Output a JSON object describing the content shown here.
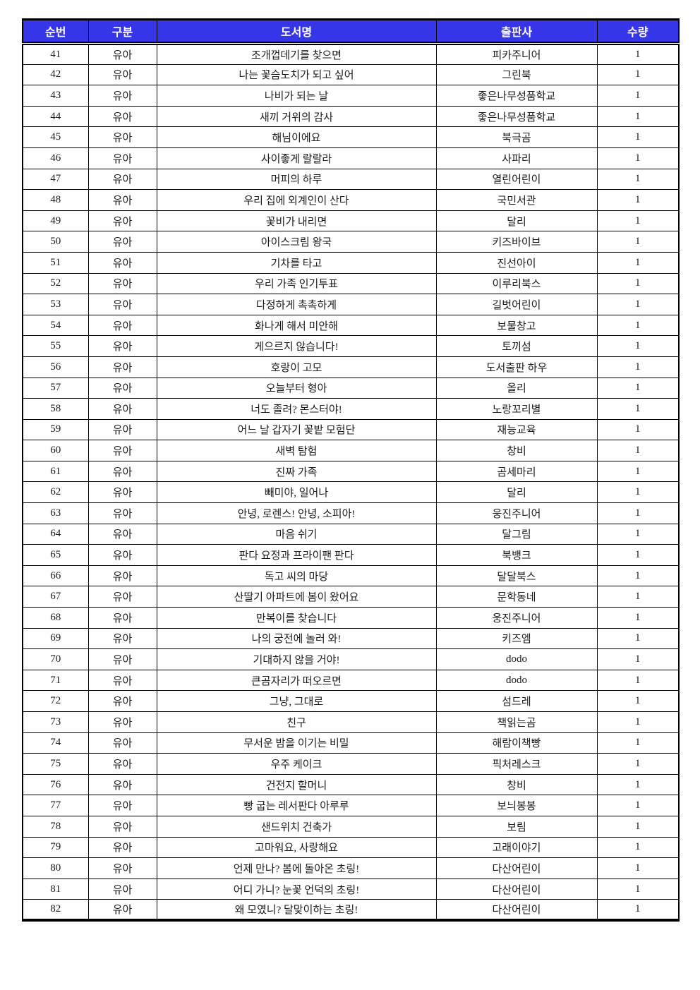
{
  "document": {
    "kind": "book-list-table-page",
    "rows_range": "41-82"
  },
  "colors": {
    "header_bg": "#3636e8",
    "header_text": "#ffffff",
    "border": "#000000",
    "row_bg": "#ffffff"
  },
  "table": {
    "columns": [
      "순번",
      "구분",
      "도서명",
      "출판사",
      "수량"
    ],
    "rows": [
      [
        41,
        "유아",
        "조개껍데기를 찾으면",
        "피카주니어",
        1
      ],
      [
        42,
        "유아",
        "나는 꽃슴도치가 되고 싶어",
        "그린북",
        1
      ],
      [
        43,
        "유아",
        "나비가 되는 날",
        "좋은나무성품학교",
        1
      ],
      [
        44,
        "유아",
        "새끼 거위의 감사",
        "좋은나무성품학교",
        1
      ],
      [
        45,
        "유아",
        "해님이에요",
        "북극곰",
        1
      ],
      [
        46,
        "유아",
        "사이좋게 랄랄라",
        "사파리",
        1
      ],
      [
        47,
        "유아",
        "머피의 하루",
        "열린어린이",
        1
      ],
      [
        48,
        "유아",
        "우리 집에 외계인이 산다",
        "국민서관",
        1
      ],
      [
        49,
        "유아",
        "꽃비가 내리면",
        "달리",
        1
      ],
      [
        50,
        "유아",
        "아이스크림 왕국",
        "키즈바이브",
        1
      ],
      [
        51,
        "유아",
        "기차를 타고",
        "진선아이",
        1
      ],
      [
        52,
        "유아",
        "우리 가족 인기투표",
        "이루리북스",
        1
      ],
      [
        53,
        "유아",
        "다정하게 촉촉하게",
        "길벗어린이",
        1
      ],
      [
        54,
        "유아",
        "화나게 해서 미안해",
        "보물창고",
        1
      ],
      [
        55,
        "유아",
        "게으르지 않습니다!",
        "토끼섬",
        1
      ],
      [
        56,
        "유아",
        "호랑이 고모",
        "도서출판 하우",
        1
      ],
      [
        57,
        "유아",
        "오늘부터 형아",
        "올리",
        1
      ],
      [
        58,
        "유아",
        "너도 졸려? 몬스터야!",
        "노랑꼬리별",
        1
      ],
      [
        59,
        "유아",
        "어느 날 갑자기 꽃밭 모험단",
        "재능교육",
        1
      ],
      [
        60,
        "유아",
        "새벽 탐험",
        "창비",
        1
      ],
      [
        61,
        "유아",
        "진짜 가족",
        "곰세마리",
        1
      ],
      [
        62,
        "유아",
        "빼미야, 일어나",
        "달리",
        1
      ],
      [
        63,
        "유아",
        "안녕, 로렌스! 안녕, 소피아!",
        "웅진주니어",
        1
      ],
      [
        64,
        "유아",
        "마음 쉬기",
        "달그림",
        1
      ],
      [
        65,
        "유아",
        "판다 요정과 프라이팬 판다",
        "북뱅크",
        1
      ],
      [
        66,
        "유아",
        "독고 씨의 마당",
        "달달북스",
        1
      ],
      [
        67,
        "유아",
        "산딸기 아파트에 봄이 왔어요",
        "문학동네",
        1
      ],
      [
        68,
        "유아",
        "만복이를 찾습니다",
        "웅진주니어",
        1
      ],
      [
        69,
        "유아",
        "나의 궁전에 놀러 와!",
        "키즈엠",
        1
      ],
      [
        70,
        "유아",
        "기대하지 않을 거야!",
        "dodo",
        1
      ],
      [
        71,
        "유아",
        "큰곰자리가 떠오르면",
        "dodo",
        1
      ],
      [
        72,
        "유아",
        "그냥, 그대로",
        "섬드레",
        1
      ],
      [
        73,
        "유아",
        "친구",
        "책읽는곰",
        1
      ],
      [
        74,
        "유아",
        "무서운 밤을 이기는 비밀",
        "해람이책빵",
        1
      ],
      [
        75,
        "유아",
        "우주 케이크",
        "픽처레스크",
        1
      ],
      [
        76,
        "유아",
        "건전지 할머니",
        "창비",
        1
      ],
      [
        77,
        "유아",
        "빵 굽는 레서판다 아루루",
        "보늬봉봉",
        1
      ],
      [
        78,
        "유아",
        "샌드위치 건축가",
        "보림",
        1
      ],
      [
        79,
        "유아",
        "고마워요, 사랑해요",
        "고래이야기",
        1
      ],
      [
        80,
        "유아",
        "언제 만나? 봄에 돌아온 초링!",
        "다산어린이",
        1
      ],
      [
        81,
        "유아",
        "어디 가니? 눈꽃 언덕의 초링!",
        "다산어린이",
        1
      ],
      [
        82,
        "유아",
        "왜 모였니? 달맞이하는 초링!",
        "다산어린이",
        1
      ]
    ]
  }
}
